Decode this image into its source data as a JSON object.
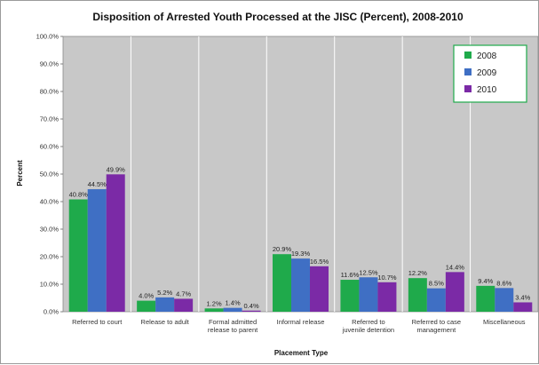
{
  "chart_data": {
    "type": "bar",
    "title": "Disposition of Arrested Youth Processed at the JISC (Percent), 2008-2010",
    "xlabel": "Placement Type",
    "ylabel": "Percent",
    "ylim": [
      0,
      100
    ],
    "yticks": [
      "0.0%",
      "10.0%",
      "20.0%",
      "30.0%",
      "40.0%",
      "50.0%",
      "60.0%",
      "70.0%",
      "80.0%",
      "90.0%",
      "100.0%"
    ],
    "categories": [
      [
        "Referred to court"
      ],
      [
        "Release to adult"
      ],
      [
        "Formal admitted",
        "release to parent"
      ],
      [
        "Informal release"
      ],
      [
        "Referred to",
        "juvenile detention"
      ],
      [
        "Referred to case",
        "management"
      ],
      [
        "Miscellaneous"
      ]
    ],
    "series": [
      {
        "name": "2008",
        "color": "#1faa4b",
        "values": [
          40.8,
          4.0,
          1.2,
          20.9,
          11.6,
          12.2,
          9.4
        ],
        "labels": [
          "40.8%",
          "4.0%",
          "1.2%",
          "20.9%",
          "11.6%",
          "12.2%",
          "9.4%"
        ]
      },
      {
        "name": "2009",
        "color": "#3f6fc4",
        "values": [
          44.5,
          5.2,
          1.4,
          19.3,
          12.5,
          8.5,
          8.6
        ],
        "labels": [
          "44.5%",
          "5.2%",
          "1.4%",
          "19.3%",
          "12.5%",
          "8.5%",
          "8.6%"
        ]
      },
      {
        "name": "2010",
        "color": "#7b2aa6",
        "values": [
          49.9,
          4.7,
          0.4,
          16.5,
          10.7,
          14.4,
          3.4
        ],
        "labels": [
          "49.9%",
          "4.7%",
          "0.4%",
          "16.5%",
          "10.7%",
          "14.4%",
          "3.4%"
        ]
      }
    ],
    "legend_position": "top-right",
    "plot_background": "#c8c8c8",
    "category_dividers": true
  }
}
